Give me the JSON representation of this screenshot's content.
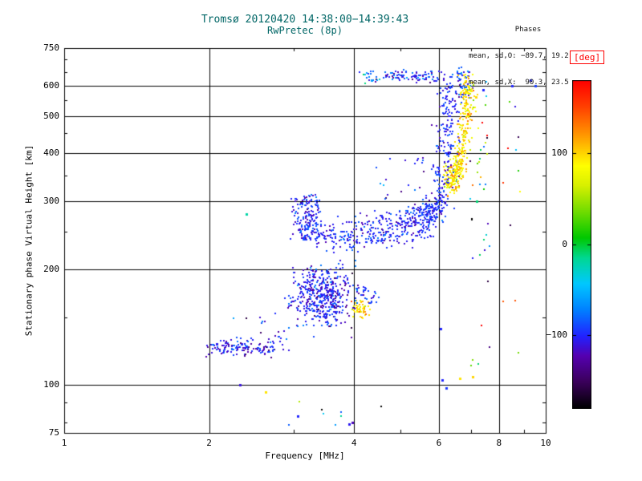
{
  "chart_data": {
    "type": "scatter",
    "title": "Tromsø 20120420 14:38:00−14:39:43",
    "subtitle": "RwPretec (8p)",
    "annotations": {
      "phases_header": "Phases",
      "phases_o": "mean, sd,O: −89.7, 19.2",
      "phases_x": "mean, sd,X:  90.3, 23.5"
    },
    "xlabel": "Frequency [MHz]",
    "ylabel": "Stationary phase Virtual Height [km]",
    "x_scale": "log",
    "y_scale": "log",
    "xlim": [
      1,
      10
    ],
    "ylim": [
      75,
      750
    ],
    "x_major_ticks": [
      1,
      2,
      4,
      6,
      8,
      10
    ],
    "x_major_labels": [
      "1",
      "2",
      "4",
      "6",
      "8",
      "10"
    ],
    "x_minor_ticks": [
      3,
      5,
      7,
      9
    ],
    "y_major_ticks": [
      75,
      100,
      200,
      300,
      400,
      500,
      600,
      750
    ],
    "y_major_labels": [
      "75",
      "100",
      "200",
      "300",
      "400",
      "500",
      "600",
      "750"
    ],
    "y_minor_ticks": [
      80,
      90,
      150,
      250,
      350,
      450,
      550,
      650,
      700
    ],
    "x_gridlines": [
      2,
      4,
      6,
      8
    ],
    "y_gridlines": [
      100,
      200,
      300,
      400,
      500,
      600
    ],
    "marker_size_px": 2,
    "colorbar": {
      "label": "[deg]",
      "range": [
        -180,
        180
      ],
      "ticks": [
        100,
        0,
        -100
      ],
      "tick_labels": [
        "100",
        "0",
        "−100"
      ],
      "colormap": [
        [
          0.0,
          "#000000"
        ],
        [
          0.08,
          "#3a005a"
        ],
        [
          0.16,
          "#5500b0"
        ],
        [
          0.22,
          "#2222ff"
        ],
        [
          0.3,
          "#0080ff"
        ],
        [
          0.38,
          "#00c8ff"
        ],
        [
          0.46,
          "#00d890"
        ],
        [
          0.52,
          "#00c800"
        ],
        [
          0.6,
          "#70dc00"
        ],
        [
          0.68,
          "#d8f000"
        ],
        [
          0.74,
          "#ffff00"
        ],
        [
          0.84,
          "#ff9000"
        ],
        [
          0.92,
          "#ff4000"
        ],
        [
          1.0,
          "#ff0000"
        ]
      ]
    },
    "clusters": [
      {
        "name": "es-stripe",
        "n": 130,
        "f": [
          1.97,
          2.72
        ],
        "h": [
          117,
          133
        ],
        "fs": "uni",
        "hs": "tri",
        "p": [
          -105,
          20
        ]
      },
      {
        "name": "es-stripe-tail",
        "n": 15,
        "f": [
          2.7,
          2.98
        ],
        "h": [
          123,
          142
        ],
        "fs": "uni",
        "hs": "uni",
        "p": [
          -100,
          25
        ]
      },
      {
        "name": "left-strays",
        "n": 8,
        "f": [
          2.25,
          2.85
        ],
        "h": [
          135,
          155
        ],
        "fs": "uni",
        "hs": "uni",
        "p": [
          -100,
          30
        ]
      },
      {
        "name": "second-hop-blob",
        "n": 420,
        "f": [
          2.85,
          3.95
        ],
        "h": [
          137,
          203
        ],
        "fs": "tri",
        "hs": "tri",
        "p": [
          -103,
          15
        ]
      },
      {
        "name": "blob-halo",
        "n": 40,
        "f": [
          2.95,
          4.1
        ],
        "h": [
          130,
          215
        ],
        "fs": "uni",
        "hs": "uni",
        "p": [
          -100,
          25
        ]
      },
      {
        "name": "x-clump-low",
        "n": 48,
        "f": [
          3.93,
          4.35
        ],
        "h": [
          147,
          169
        ],
        "fs": "tri",
        "hs": "tri",
        "p": [
          95,
          20
        ]
      },
      {
        "name": "blue-arc",
        "n": 35,
        "f": [
          3.98,
          4.5
        ],
        "h": [
          162,
          182
        ],
        "fs": "uni",
        "hs": "uni",
        "p": [
          -100,
          18
        ]
      },
      {
        "name": "f-lead-column",
        "n": 170,
        "f": [
          2.92,
          3.45
        ],
        "h": [
          238,
          312
        ],
        "fs": "tri",
        "hs": "uni",
        "p": [
          -100,
          15
        ]
      },
      {
        "name": "above-trace-scatter",
        "n": 20,
        "f": [
          4.3,
          5.6
        ],
        "h": [
          300,
          390
        ],
        "fs": "uni",
        "hs": "uni",
        "p": [
          -95,
          25
        ]
      },
      {
        "name": "x-cloud-low",
        "n": 55,
        "f": [
          6.15,
          6.6
        ],
        "h": [
          325,
          385
        ],
        "fs": "uni",
        "hs": "uni",
        "p": [
          92,
          22
        ]
      },
      {
        "name": "x-top-blue",
        "n": 45,
        "f": [
          6.5,
          7.0
        ],
        "h": [
          555,
          655
        ],
        "fs": "uni",
        "hs": "uni",
        "p": [
          -95,
          20
        ]
      },
      {
        "name": "top-band-left",
        "n": 18,
        "f": [
          4.08,
          4.52
        ],
        "h": [
          608,
          652
        ],
        "fs": "uni",
        "hs": "uni",
        "p": [
          -85,
          35
        ]
      },
      {
        "name": "top-band-main",
        "n": 85,
        "f": [
          4.6,
          6.02
        ],
        "h": [
          605,
          660
        ],
        "fs": "uni",
        "hs": "tri",
        "p": [
          -95,
          20
        ]
      },
      {
        "name": "sparse-col-7mhz",
        "n": 42,
        "f": [
          6.95,
          7.65
        ],
        "h": [
          85,
          620
        ],
        "fs": "uni",
        "hs": "uni",
        "p": [
          0,
          115
        ]
      },
      {
        "name": "sparse-col-8mhz",
        "n": 12,
        "f": [
          8.15,
          8.85
        ],
        "h": [
          120,
          560
        ],
        "fs": "uni",
        "hs": "uni",
        "p": [
          -10,
          110
        ]
      },
      {
        "name": "bottom-sparse",
        "n": 8,
        "f": [
          2.5,
          4.6
        ],
        "h": [
          78,
          95
        ],
        "fs": "uni",
        "hs": "uni",
        "p": [
          -60,
          90
        ]
      }
    ],
    "traces": [
      {
        "name": "o-mode-trace",
        "n": 600,
        "pts": [
          [
            3.2,
            250
          ],
          [
            3.6,
            242
          ],
          [
            4.0,
            241
          ],
          [
            4.5,
            244
          ],
          [
            5.0,
            250
          ],
          [
            5.4,
            258
          ],
          [
            5.7,
            270
          ],
          [
            5.95,
            292
          ],
          [
            6.1,
            325
          ],
          [
            6.2,
            375
          ],
          [
            6.26,
            440
          ],
          [
            6.3,
            530
          ],
          [
            6.33,
            625
          ]
        ],
        "fj": 0.012,
        "hj": 0.018,
        "p": [
          -100,
          13
        ]
      },
      {
        "name": "o-mode-upper-echo",
        "n": 110,
        "pts": [
          [
            3.95,
            260
          ],
          [
            4.5,
            265
          ],
          [
            5.05,
            272
          ],
          [
            5.5,
            283
          ],
          [
            5.8,
            298
          ]
        ],
        "fj": 0.01,
        "hj": 0.012,
        "p": [
          -98,
          15
        ]
      },
      {
        "name": "x-mode-trace",
        "n": 300,
        "pts": [
          [
            6.36,
            332
          ],
          [
            6.5,
            348
          ],
          [
            6.62,
            372
          ],
          [
            6.72,
            415
          ],
          [
            6.8,
            475
          ],
          [
            6.86,
            545
          ],
          [
            6.91,
            608
          ]
        ],
        "fj": 0.007,
        "hj": 0.02,
        "p": [
          92,
          18
        ]
      }
    ],
    "singles": [
      [
        2.39,
        278,
        -20
      ],
      [
        2.32,
        100,
        -110
      ],
      [
        2.62,
        96,
        95
      ],
      [
        3.05,
        83,
        -100
      ],
      [
        3.9,
        79,
        -105
      ],
      [
        3.96,
        80,
        -118
      ],
      [
        6.9,
        505,
        130
      ],
      [
        7.2,
        300,
        -10
      ],
      [
        7.05,
        105,
        100
      ],
      [
        6.62,
        104,
        95
      ],
      [
        6.1,
        103,
        -100
      ],
      [
        6.22,
        98,
        -95
      ],
      [
        6.05,
        140,
        -100
      ],
      [
        9.3,
        618,
        -100
      ],
      [
        9.5,
        598,
        -92
      ],
      [
        8.5,
        600,
        -100
      ],
      [
        2.07,
        128,
        -104
      ],
      [
        4.35,
        620,
        -60
      ],
      [
        7.4,
        585,
        -100
      ],
      [
        7.15,
        560,
        98
      ]
    ]
  }
}
